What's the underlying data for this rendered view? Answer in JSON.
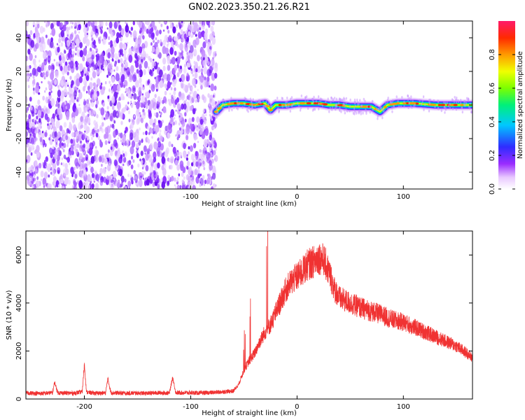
{
  "title": "GN02.2023.350.21.26.R21",
  "chart_data": [
    {
      "type": "heatmap",
      "xlabel": "Height of straight line (km)",
      "ylabel": "Frequency (Hz)",
      "xlim": [
        -255,
        165
      ],
      "ylim": [
        -50,
        50
      ],
      "xticks": [
        -200,
        -100,
        0,
        100
      ],
      "xtick_labels": [
        "-200",
        "-100",
        "0",
        "100"
      ],
      "yticks": [
        -40,
        -20,
        0,
        20,
        40
      ],
      "ytick_labels": [
        "-40",
        "-20",
        "0",
        "20",
        "40"
      ],
      "noise_region_x": [
        -255,
        -76
      ],
      "signal_trace": {
        "x": [
          -76,
          -70,
          -60,
          -50,
          -40,
          -30,
          -25,
          -20,
          -10,
          0,
          10,
          20,
          30,
          40,
          50,
          60,
          70,
          78,
          85,
          95,
          110,
          130,
          150,
          165
        ],
        "y": [
          -4,
          0,
          1,
          1,
          0,
          1,
          -3,
          0,
          0,
          1,
          1,
          1,
          0,
          0,
          -1,
          -1,
          -1,
          -4,
          0,
          1,
          1,
          0,
          0,
          0
        ]
      },
      "colorbar": {
        "label": "Normalized spectral amplitude",
        "range": [
          0,
          1
        ],
        "ticks": [
          "0.0",
          "0.2",
          "0.4",
          "0.6",
          "0.8"
        ]
      },
      "grid": false
    },
    {
      "type": "line",
      "xlabel": "Height of straight line (km)",
      "ylabel": "SNR (10 * v/v)",
      "xlim": [
        -255,
        165
      ],
      "ylim": [
        0,
        7000
      ],
      "xticks": [
        -200,
        -100,
        0,
        100
      ],
      "xtick_labels": [
        "-200",
        "-100",
        "0",
        "100"
      ],
      "yticks": [
        0,
        2000,
        4000,
        6000
      ],
      "ytick_labels": [
        "0",
        "2000",
        "4000",
        "6000"
      ],
      "line_color": "#f03232",
      "series": [
        {
          "x": [
            -255,
            -240,
            -230,
            -228,
            -225,
            -210,
            -202,
            -200,
            -198,
            -190,
            -180,
            -178,
            -175,
            -160,
            -150,
            -140,
            -130,
            -120,
            -117,
            -114,
            -100,
            -90,
            -80,
            -70,
            -60,
            -55,
            -50,
            -45,
            -40,
            -35,
            -30,
            -25,
            -20,
            -15,
            -10,
            -5,
            0,
            5,
            10,
            15,
            20,
            25,
            30,
            35,
            40,
            50,
            60,
            70,
            80,
            90,
            100,
            110,
            120,
            130,
            140,
            150,
            160,
            165
          ],
          "y": [
            250,
            230,
            260,
            700,
            260,
            240,
            300,
            1450,
            280,
            240,
            250,
            850,
            260,
            240,
            250,
            240,
            260,
            250,
            900,
            260,
            260,
            250,
            270,
            300,
            330,
            600,
            1200,
            1600,
            1900,
            2400,
            2800,
            3100,
            3600,
            4100,
            4600,
            4900,
            5100,
            5300,
            5600,
            5700,
            5900,
            5800,
            5300,
            4600,
            4200,
            4000,
            3800,
            3650,
            3500,
            3300,
            3200,
            3000,
            2800,
            2600,
            2400,
            2200,
            1900,
            1700
          ]
        }
      ],
      "grid": false
    }
  ]
}
